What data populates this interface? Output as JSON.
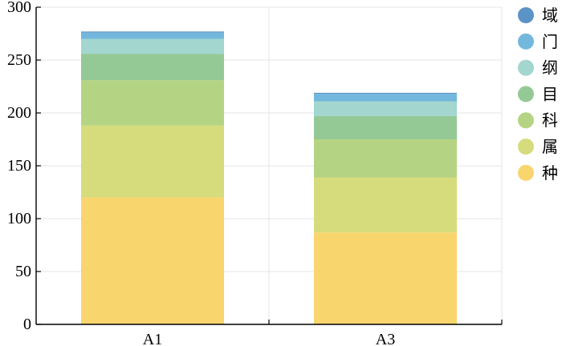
{
  "chart_data": {
    "type": "bar",
    "stacked": true,
    "categories": [
      "A1",
      "A3"
    ],
    "series": [
      {
        "name": "种",
        "color": "#f9d56e",
        "values": [
          120,
          87
        ]
      },
      {
        "name": "属",
        "color": "#d6dc7b",
        "values": [
          68,
          52
        ]
      },
      {
        "name": "科",
        "color": "#b5d483",
        "values": [
          43,
          36
        ]
      },
      {
        "name": "目",
        "color": "#94c996",
        "values": [
          25,
          22
        ]
      },
      {
        "name": "纲",
        "color": "#a2d6cf",
        "values": [
          14,
          14
        ]
      },
      {
        "name": "门",
        "color": "#73b8dc",
        "values": [
          6,
          7
        ]
      },
      {
        "name": "域",
        "color": "#5b93c6",
        "values": [
          1,
          1
        ]
      }
    ],
    "legend_order": [
      "域",
      "门",
      "纲",
      "目",
      "科",
      "属",
      "种"
    ],
    "ylim": [
      0,
      300
    ],
    "yticks": [
      0,
      50,
      100,
      150,
      200,
      250,
      300
    ],
    "grid": true,
    "legend_position": "right",
    "title": "",
    "xlabel": "",
    "ylabel": ""
  }
}
